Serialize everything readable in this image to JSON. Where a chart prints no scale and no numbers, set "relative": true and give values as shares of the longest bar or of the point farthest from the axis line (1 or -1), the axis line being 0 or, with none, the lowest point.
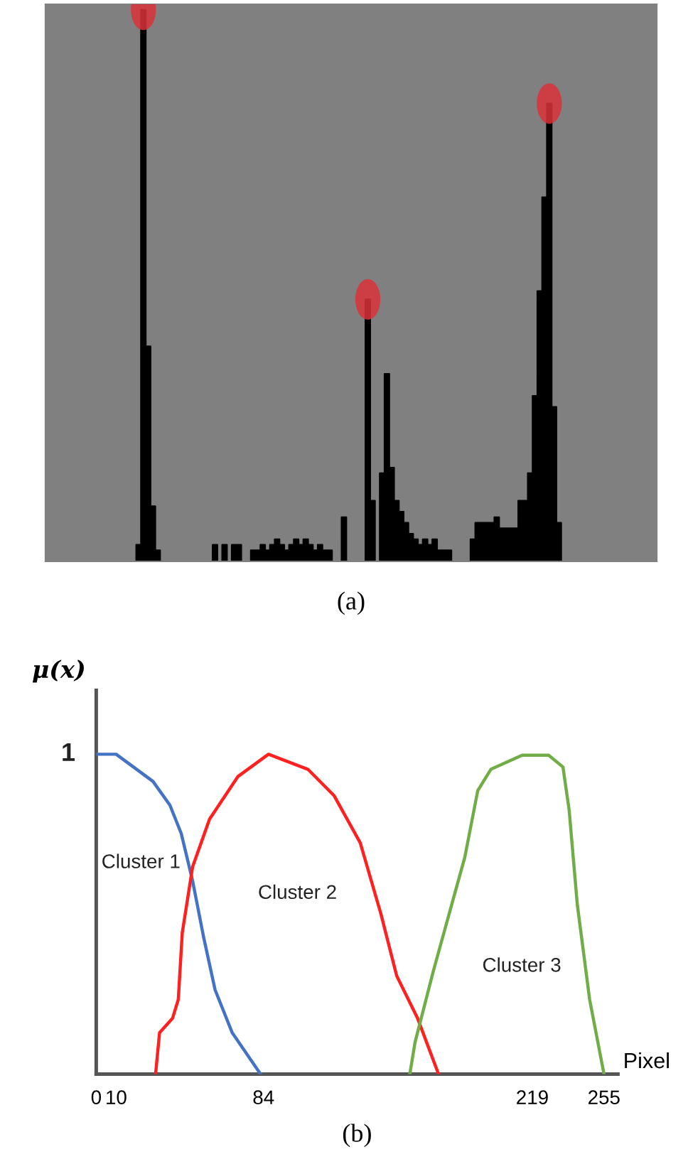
{
  "chart_data": [
    {
      "type": "area",
      "relative": true,
      "title": "(a)",
      "grid": false,
      "categories": [
        null,
        null,
        null,
        null,
        null,
        null,
        null,
        null,
        null,
        null,
        null,
        null,
        null,
        null,
        null,
        null,
        null,
        null,
        null,
        null,
        null,
        null,
        null,
        null,
        null,
        null,
        null,
        null,
        null,
        null,
        null,
        null,
        null,
        null,
        null,
        null,
        null,
        null,
        null,
        null,
        null,
        null,
        null,
        null,
        null,
        null,
        null,
        null,
        null,
        null,
        null,
        null,
        null,
        null,
        null,
        null,
        null,
        null,
        null,
        null,
        null,
        null,
        null,
        null,
        null,
        null,
        null,
        null,
        null,
        null,
        null,
        null,
        null,
        null,
        null,
        null,
        null,
        null,
        null,
        null,
        null,
        null,
        null,
        null,
        null,
        null,
        null,
        null,
        null,
        null,
        null,
        null,
        null,
        null,
        null,
        null,
        null,
        null,
        null,
        null,
        null,
        null,
        null,
        null,
        null,
        null,
        null,
        null,
        null,
        null,
        null,
        null,
        null,
        null,
        null,
        null,
        null,
        null,
        null,
        null,
        null,
        null,
        null,
        null,
        null,
        null,
        null,
        null
      ],
      "values": [
        0,
        0,
        0,
        0,
        0,
        0,
        0,
        0,
        0,
        0,
        0,
        0,
        0,
        0,
        0,
        0,
        0,
        0,
        0,
        0.03,
        1,
        0.39,
        0.1,
        0.02,
        0,
        0,
        0,
        0,
        0,
        0,
        0,
        0,
        0,
        0,
        0,
        0.03,
        0,
        0.03,
        0,
        0.03,
        0.03,
        0,
        0,
        0.02,
        0.02,
        0.03,
        0.02,
        0.03,
        0.04,
        0.03,
        0.02,
        0.03,
        0.04,
        0.03,
        0.04,
        0.03,
        0.02,
        0.03,
        0.02,
        0.02,
        0,
        0,
        0.08,
        0,
        0,
        0,
        0,
        0.475,
        0.11,
        0,
        0.16,
        0.34,
        0.17,
        0.11,
        0.09,
        0.07,
        0.05,
        0.04,
        0.03,
        0.04,
        0.03,
        0.04,
        0.02,
        0.02,
        0.02,
        0,
        0,
        0,
        0,
        0.04,
        0.07,
        0.07,
        0.07,
        0.07,
        0.08,
        0.06,
        0.06,
        0.06,
        0.06,
        0.11,
        0.11,
        0.16,
        0.3,
        0.49,
        0.66,
        0.83,
        0.28,
        0.07,
        0,
        0,
        0,
        0,
        0,
        0,
        0,
        0,
        0,
        0,
        0,
        0,
        0,
        0,
        0,
        0,
        0,
        0,
        0,
        0
      ],
      "color": "#000000"
    },
    {
      "type": "line",
      "relative": true,
      "title": "(b)",
      "xlabel": "Pixel",
      "ylabel": "μ(x)",
      "grid": false,
      "marker": "none",
      "line_style": "solid",
      "xlim": [
        0,
        262
      ],
      "xticks": [
        0,
        10,
        84,
        219,
        255
      ],
      "series": [
        {
          "color": "#4472c4",
          "x": [
            0,
            10,
            28.5,
            37,
            42.7,
            48.4,
            54,
            59.7,
            68.3,
            82.5
          ],
          "values": [
            1,
            1,
            0.915,
            0.841,
            0.752,
            0.604,
            0.426,
            0.263,
            0.129,
            0
          ]
        },
        {
          "color": "#ff2020",
          "x": [
            29.8,
            31.8,
            38.3,
            41.2,
            43.2,
            48.4,
            56.9,
            71.1,
            86.5,
            106.3,
            119.4,
            132.6,
            143,
            150.9,
            161.4,
            171.9
          ],
          "values": [
            0,
            0.129,
            0.174,
            0.233,
            0.441,
            0.648,
            0.797,
            0.93,
            1,
            0.953,
            0.871,
            0.723,
            0.5,
            0.307,
            0.174,
            0
          ]
        },
        {
          "color": "#70ad47",
          "x": [
            157.5,
            160.1,
            169.3,
            185.1,
            191.6,
            198.2,
            213.9,
            227.2,
            234.4,
            237.5,
            241.6,
            247.8,
            255
          ],
          "values": [
            0,
            0.099,
            0.322,
            0.678,
            0.886,
            0.953,
            0.997,
            0.997,
            0.96,
            0.826,
            0.53,
            0.233,
            0
          ]
        }
      ],
      "annotations": [
        "1",
        "Cluster 1",
        "Cluster 2",
        "Cluster 3"
      ]
    }
  ]
}
